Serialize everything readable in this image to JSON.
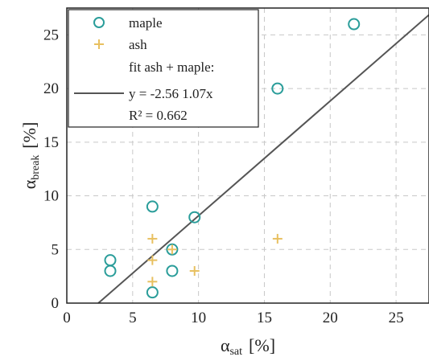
{
  "chart_data": {
    "type": "scatter",
    "xlabel": {
      "main": "α",
      "sub": "sat",
      "unit": "[%]"
    },
    "ylabel": {
      "main": "α",
      "sub": "break",
      "unit": "[%]"
    },
    "xlim": [
      0,
      27.5
    ],
    "ylim": [
      0,
      27.5
    ],
    "xticks": [
      0,
      5,
      10,
      15,
      20,
      25
    ],
    "yticks": [
      0,
      5,
      10,
      15,
      20,
      25
    ],
    "grid": true,
    "legend_position": "top-left",
    "series": [
      {
        "name": "maple",
        "marker": "circle",
        "color": "#2a9d9a",
        "points": [
          [
            6.5,
            1
          ],
          [
            3.3,
            3
          ],
          [
            3.3,
            4
          ],
          [
            8,
            3
          ],
          [
            8,
            5
          ],
          [
            9.7,
            8
          ],
          [
            6.5,
            9
          ],
          [
            16,
            20
          ],
          [
            21.8,
            26
          ]
        ]
      },
      {
        "name": "ash",
        "marker": "plus",
        "color": "#e8c060",
        "points": [
          [
            6.5,
            2
          ],
          [
            6.5,
            4
          ],
          [
            6.5,
            6
          ],
          [
            8,
            5
          ],
          [
            9.7,
            3
          ],
          [
            16,
            6
          ]
        ]
      }
    ],
    "fit": {
      "name": "fit ash + maple:",
      "equation": "y = -2.56  1.07x",
      "r2": "R² = 0.662",
      "intercept": -2.56,
      "slope": 1.07,
      "color": "#555555"
    }
  }
}
